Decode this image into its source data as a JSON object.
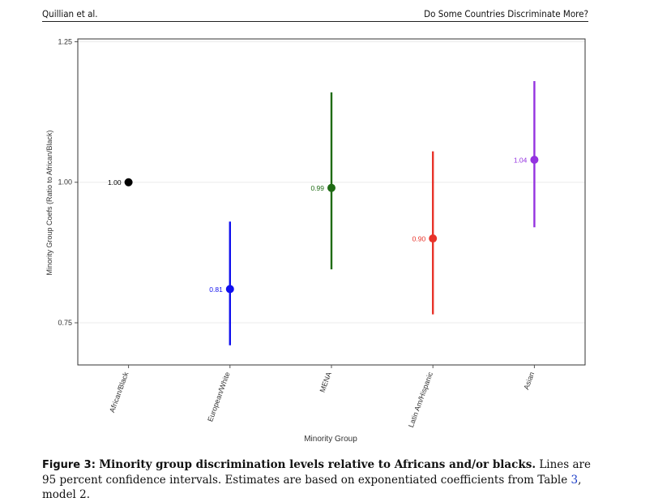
{
  "header": {
    "left": "Quillian et al.",
    "right": "Do Some Countries Discriminate More?"
  },
  "caption": {
    "label": "Figure 3:",
    "title": "Minority group discrimination levels relative to Africans and/or blacks.",
    "text_before_ref": "Lines are 95 percent confidence intervals. Estimates are based on exponentiated coefficients from Table",
    "ref": "3",
    "text_after_ref": ", model 2."
  },
  "chart_data": {
    "type": "scatter",
    "xlabel": "Minority Group",
    "ylabel": "Minority Group Coefs (Ratio to African/Black)",
    "ylim": [
      0.675,
      1.255
    ],
    "yticks": [
      0.75,
      1.0,
      1.25
    ],
    "ytick_labels": [
      "0.75",
      "1.00",
      "1.25"
    ],
    "grid": true,
    "categories": [
      "African/Black",
      "European/White",
      "MENA",
      "Latin Am/Hispanic",
      "Asian"
    ],
    "points": [
      {
        "category": "African/Black",
        "estimate": 1.0,
        "ci_low": 1.0,
        "ci_high": 1.0,
        "label": "1.00",
        "color": "#000000"
      },
      {
        "category": "European/White",
        "estimate": 0.81,
        "ci_low": 0.71,
        "ci_high": 0.93,
        "label": "0.81",
        "color": "#1010ee"
      },
      {
        "category": "MENA",
        "estimate": 0.99,
        "ci_low": 0.845,
        "ci_high": 1.16,
        "label": "0.99",
        "color": "#1f6b14"
      },
      {
        "category": "Latin Am/Hispanic",
        "estimate": 0.9,
        "ci_low": 0.765,
        "ci_high": 1.055,
        "label": "0.90",
        "color": "#e8332a"
      },
      {
        "category": "Asian",
        "estimate": 1.04,
        "ci_low": 0.92,
        "ci_high": 1.18,
        "label": "1.04",
        "color": "#9433e0"
      }
    ]
  }
}
